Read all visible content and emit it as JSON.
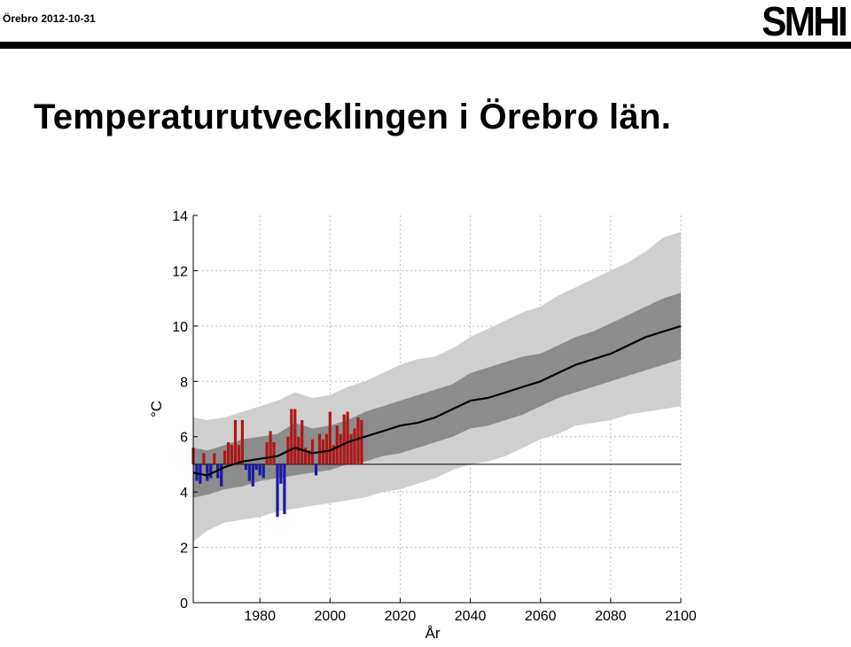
{
  "header": {
    "meta": "Örebro 2012-10-31",
    "logo": "SMHI"
  },
  "title": "Temperaturutvecklingen i Örebro län.",
  "chart_data": {
    "type": "line",
    "title": "",
    "xlabel": "År",
    "ylabel": "°C",
    "xlim": [
      1961,
      2100
    ],
    "ylim": [
      0,
      14
    ],
    "xticks": [
      1980,
      2000,
      2020,
      2040,
      2060,
      2080,
      2100
    ],
    "yticks": [
      0,
      2,
      4,
      6,
      8,
      10,
      12,
      14
    ],
    "grid": true,
    "reference_line": 5.0,
    "colors": {
      "above": "#b01818",
      "below": "#1a1aa8",
      "mean": "#000000",
      "band_inner": "#8c8c8c",
      "band_outer": "#cfcfcf"
    },
    "observed_years": [
      1961,
      1962,
      1963,
      1964,
      1965,
      1966,
      1967,
      1968,
      1969,
      1970,
      1971,
      1972,
      1973,
      1974,
      1975,
      1976,
      1977,
      1978,
      1979,
      1980,
      1981,
      1982,
      1983,
      1984,
      1985,
      1986,
      1987,
      1988,
      1989,
      1990,
      1991,
      1992,
      1993,
      1994,
      1995,
      1996,
      1997,
      1998,
      1999,
      2000,
      2001,
      2002,
      2003,
      2004,
      2005,
      2006,
      2007,
      2008,
      2009
    ],
    "observed_values": [
      5.6,
      4.4,
      4.3,
      5.4,
      4.4,
      4.5,
      5.4,
      4.5,
      4.2,
      5.5,
      5.8,
      5.7,
      6.6,
      5.7,
      6.6,
      4.8,
      4.4,
      4.2,
      4.8,
      4.6,
      4.5,
      5.8,
      6.2,
      5.8,
      3.1,
      4.3,
      3.2,
      6.0,
      7.0,
      7.0,
      6.0,
      6.6,
      5.6,
      5.5,
      5.9,
      4.6,
      6.1,
      5.9,
      6.1,
      6.9,
      5.7,
      6.4,
      6.1,
      6.8,
      6.9,
      6.1,
      6.3,
      6.7,
      6.6
    ],
    "series": [
      {
        "name": "",
        "x": [
          1961,
          1965,
          1970,
          1975,
          1980,
          1985,
          1990,
          1995,
          2000,
          2005,
          2010,
          2015,
          2020,
          2025,
          2030,
          2035,
          2040,
          2045,
          2050,
          2055,
          2060,
          2065,
          2070,
          2075,
          2080,
          2085,
          2090,
          2095,
          2100
        ],
        "mean": [
          4.7,
          4.6,
          4.9,
          5.1,
          5.2,
          5.3,
          5.6,
          5.4,
          5.5,
          5.8,
          6.0,
          6.2,
          6.4,
          6.5,
          6.7,
          7.0,
          7.3,
          7.4,
          7.6,
          7.8,
          8.0,
          8.3,
          8.6,
          8.8,
          9.0,
          9.3,
          9.6,
          9.8,
          10.0
        ],
        "inner_low": [
          3.8,
          3.9,
          4.1,
          4.2,
          4.4,
          4.5,
          4.6,
          4.7,
          4.8,
          5.0,
          5.1,
          5.3,
          5.4,
          5.6,
          5.8,
          6.0,
          6.3,
          6.4,
          6.6,
          6.8,
          7.1,
          7.4,
          7.6,
          7.8,
          8.0,
          8.2,
          8.4,
          8.6,
          8.8
        ],
        "inner_high": [
          5.6,
          5.5,
          5.7,
          5.9,
          6.0,
          6.1,
          6.5,
          6.3,
          6.4,
          6.6,
          6.9,
          7.1,
          7.3,
          7.5,
          7.7,
          7.9,
          8.3,
          8.5,
          8.7,
          8.9,
          9.0,
          9.3,
          9.6,
          9.8,
          10.1,
          10.4,
          10.7,
          11.0,
          11.2
        ],
        "outer_low": [
          2.2,
          2.6,
          2.9,
          3.0,
          3.1,
          3.3,
          3.4,
          3.5,
          3.6,
          3.7,
          3.8,
          4.0,
          4.1,
          4.3,
          4.5,
          4.8,
          5.0,
          5.1,
          5.3,
          5.6,
          5.9,
          6.1,
          6.4,
          6.5,
          6.6,
          6.8,
          6.9,
          7.0,
          7.1
        ],
        "outer_high": [
          6.7,
          6.6,
          6.7,
          6.9,
          7.1,
          7.3,
          7.6,
          7.4,
          7.5,
          7.8,
          8.0,
          8.3,
          8.6,
          8.8,
          8.9,
          9.2,
          9.6,
          9.9,
          10.2,
          10.5,
          10.7,
          11.1,
          11.4,
          11.7,
          12.0,
          12.3,
          12.7,
          13.2,
          13.4
        ]
      }
    ]
  }
}
